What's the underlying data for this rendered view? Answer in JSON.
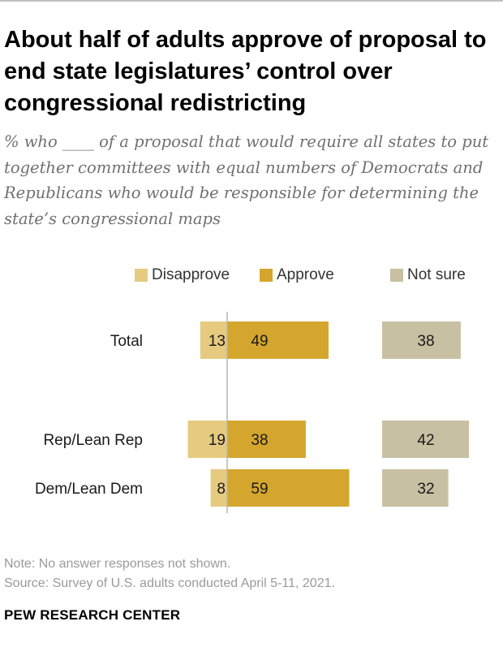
{
  "title": "About half of adults approve of proposal to end state legislatures’ control over congressional redistricting",
  "subtitle": "% who ____ of a proposal that would require all states to put together committees with equal numbers of Democrats and Republicans who would be responsible for determining the state’s congressional maps",
  "colors": {
    "disapprove": "#e5ca7f",
    "approve": "#d4a62e",
    "not_sure": "#c8c0a2",
    "axis": "#b5b5b5"
  },
  "chart_data": {
    "type": "bar",
    "orientation": "horizontal",
    "stacking": "diverging",
    "categories": [
      "Total",
      "Rep/Lean Rep",
      "Dem/Lean Dem"
    ],
    "series": [
      {
        "name": "Disapprove",
        "values": [
          13,
          19,
          8
        ]
      },
      {
        "name": "Approve",
        "values": [
          49,
          38,
          59
        ]
      },
      {
        "name": "Not sure",
        "values": [
          38,
          42,
          32
        ]
      }
    ],
    "value_labels": true,
    "legend": [
      "Disapprove",
      "Approve",
      "Not sure"
    ],
    "legend_position": "top",
    "xlabel": "",
    "ylabel": ""
  },
  "note": "Note: No answer responses not shown.",
  "source": "Source: Survey of U.S. adults conducted April 5-11, 2021.",
  "brand": "PEW RESEARCH CENTER"
}
